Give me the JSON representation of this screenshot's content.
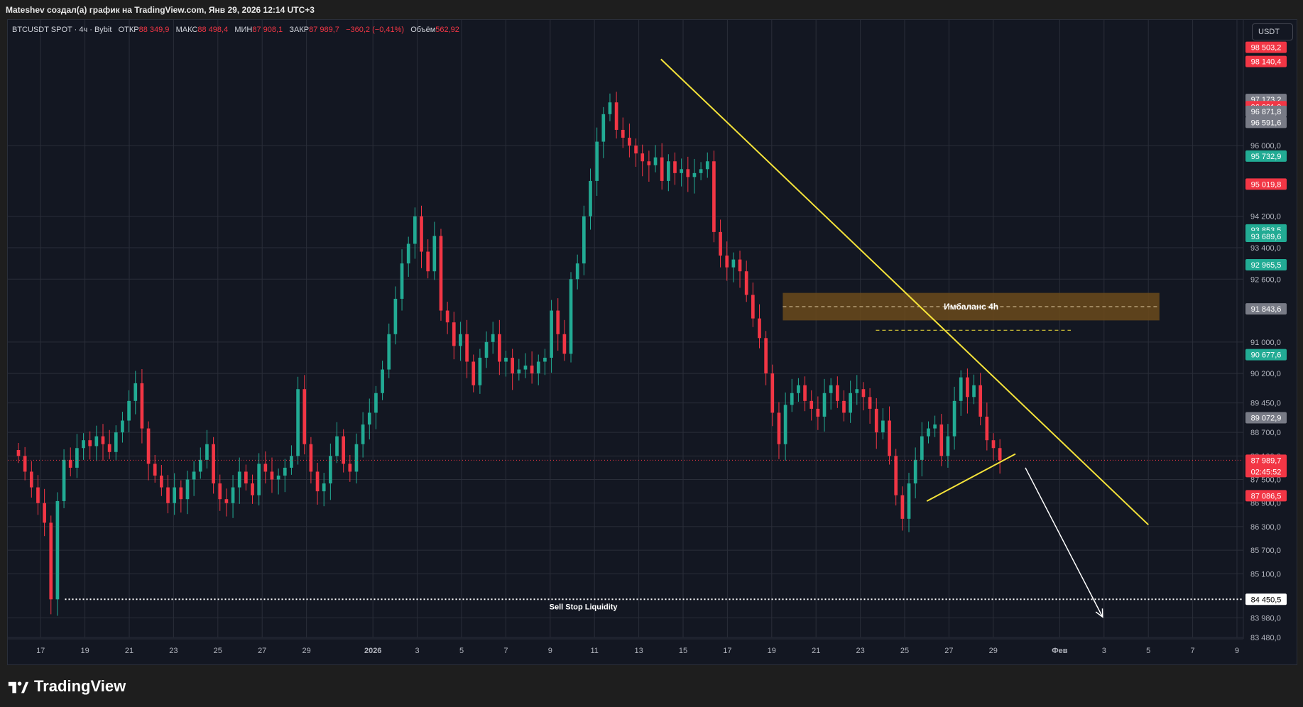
{
  "header": {
    "attribution": "Mateshev создал(а) график на TradingView.com, Янв 29, 2026 12:14 UTC+3"
  },
  "legend": {
    "symbol": "BTCUSDT SPOT · 4ч · Bybit",
    "open_label": "ОТКР",
    "open_value": "88 349,9",
    "high_label": "МАКС",
    "high_value": "88 498,4",
    "low_label": "МИН",
    "low_value": "87 908,1",
    "close_label": "ЗАКР",
    "close_value": "87 989,7",
    "change": "−360,2 (−0,41%)",
    "volume_label": "Объём",
    "volume_value": "562,92"
  },
  "currency_button": "USDT",
  "brand": {
    "name": "TradingView"
  },
  "colors": {
    "background": "#131722",
    "grid": "#2a2e39",
    "up": "#22ab94",
    "down": "#f23645",
    "trendline": "#f5e33a",
    "imbalance_zone": "#6b4a1b",
    "arrow": "#ffffff"
  },
  "chart_data": {
    "type": "candlestick",
    "symbol": "BTCUSDT",
    "timeframe": "4h",
    "price_scale_ticks": [
      "96 000,0",
      "94 200,0",
      "93 400,0",
      "92 600,0",
      "91 000,0",
      "90 200,0",
      "89 450,0",
      "88 700,0",
      "88 100,0",
      "87 500,0",
      "86 900,0",
      "86 300,0",
      "85 700,0",
      "85 100,0",
      "83 980,0",
      "83 480,0"
    ],
    "x_tick_labels": [
      "17",
      "19",
      "21",
      "23",
      "25",
      "27",
      "29",
      "2026",
      "3",
      "5",
      "7",
      "9",
      "11",
      "13",
      "15",
      "17",
      "19",
      "21",
      "23",
      "25",
      "27",
      "29",
      "Фев",
      "3",
      "5",
      "7",
      "9"
    ],
    "ylim": [
      83480,
      99200
    ],
    "price_badges": [
      {
        "value": "98 503,2",
        "color": "#f23645"
      },
      {
        "value": "98 140,4",
        "color": "#f23645"
      },
      {
        "value": "97 173,2",
        "color": "#787b86"
      },
      {
        "value": "96 991,0",
        "color": "#f23645"
      },
      {
        "value": "96 871,8",
        "color": "#787b86"
      },
      {
        "value": "96 591,6",
        "color": "#787b86"
      },
      {
        "value": "95 732,9",
        "color": "#22ab94"
      },
      {
        "value": "95 019,8",
        "color": "#f23645"
      },
      {
        "value": "93 853,5",
        "color": "#22ab94"
      },
      {
        "value": "93 689,6",
        "color": "#22ab94"
      },
      {
        "value": "92 965,5",
        "color": "#22ab94"
      },
      {
        "value": "91 843,6",
        "color": "#787b86"
      },
      {
        "value": "90 677,6",
        "color": "#22ab94"
      },
      {
        "value": "89 072,9",
        "color": "#787b86"
      },
      {
        "value": "87 989,7",
        "color": "#f23645",
        "sub": "02:45:52"
      },
      {
        "value": "87 086,5",
        "color": "#f23645"
      },
      {
        "value": "84 450,5",
        "color": "#ffffff"
      }
    ],
    "current_price": 87989.7,
    "countdown": "02:45:52",
    "annotations": [
      {
        "type": "rectangle",
        "label": "Имбаланс 4h",
        "price_low": 91550,
        "price_high": 92250
      },
      {
        "type": "horizontal_dotted",
        "label": "Sell Stop Liquidity",
        "price": 84450.5
      },
      {
        "type": "horizontal_dashed",
        "price": 91300
      },
      {
        "type": "trendline",
        "from_date": "Jan 14",
        "from_price": 98200,
        "to_date": "Feb 5",
        "to_price": 86350
      },
      {
        "type": "trendline",
        "from_date": "Jan 26",
        "from_price": 86950,
        "to_date": "Jan 30",
        "to_price": 88150
      },
      {
        "type": "arrow",
        "from_date": "Jan 30",
        "from_price": 87800,
        "to_date": "Feb 3",
        "to_price": 84000
      }
    ],
    "close_series": [
      88100,
      87700,
      87300,
      86900,
      86400,
      84450,
      86950,
      88000,
      87800,
      88300,
      88500,
      88350,
      88600,
      88400,
      88200,
      88700,
      89000,
      89500,
      89950,
      88800,
      87900,
      87600,
      87300,
      86900,
      87300,
      87000,
      87500,
      87700,
      88000,
      88400,
      87400,
      87000,
      86900,
      87300,
      87700,
      87400,
      87100,
      87900,
      87700,
      87500,
      87600,
      87800,
      88100,
      89800,
      88400,
      87700,
      87200,
      87400,
      88100,
      88600,
      87900,
      87700,
      88400,
      88900,
      89200,
      89700,
      90300,
      91200,
      92100,
      93000,
      93500,
      94200,
      93300,
      92800,
      93700,
      91800,
      91500,
      90900,
      91200,
      90500,
      89900,
      90600,
      91000,
      91200,
      90500,
      90600,
      90200,
      90300,
      90400,
      90200,
      90500,
      90600,
      91800,
      91200,
      90700,
      92600,
      93000,
      94200,
      95100,
      96100,
      96800,
      97100,
      96400,
      96200,
      96000,
      95800,
      95600,
      95500,
      95700,
      95100,
      95600,
      95300,
      95400,
      95200,
      95300,
      95400,
      95600,
      93800,
      93200,
      92900,
      93100,
      92800,
      92200,
      91600,
      91100,
      90200,
      89200,
      88400,
      89400,
      89700,
      89900,
      89500,
      89300,
      89100,
      89700,
      89900,
      89500,
      89200,
      89700,
      89800,
      89600,
      89300,
      88700,
      89000,
      88100,
      87100,
      86500,
      87400,
      88000,
      88600,
      88800,
      88900,
      88100,
      88600,
      89500,
      90100,
      89600,
      89900,
      89100,
      88500,
      88300,
      87990
    ]
  }
}
